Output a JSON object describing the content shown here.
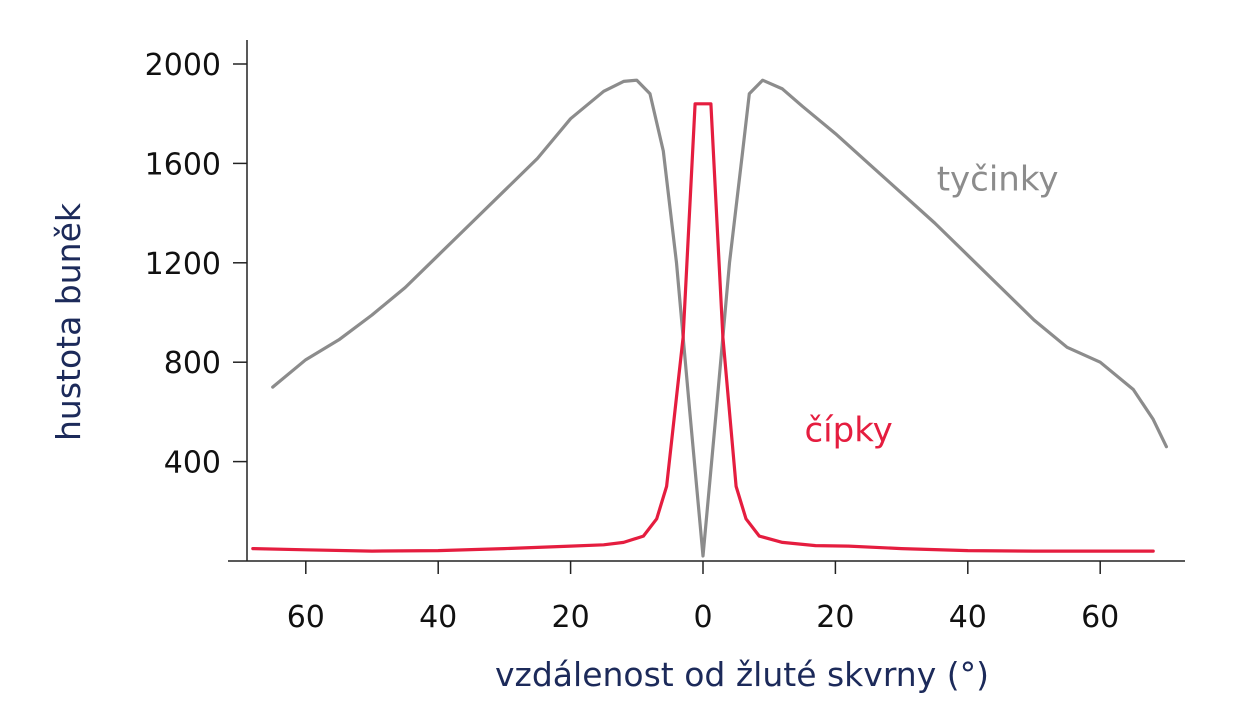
{
  "chart_data": {
    "type": "line",
    "xlabel": "vzdálenost od žluté skvrny (°)",
    "ylabel": "hustota buněk",
    "xlim": [
      -72,
      73
    ],
    "ylim": [
      0,
      2100
    ],
    "x_ticks": [
      -60,
      -40,
      -20,
      0,
      20,
      40,
      60
    ],
    "x_tick_labels": [
      "60",
      "40",
      "20",
      "0",
      "20",
      "40",
      "60"
    ],
    "y_ticks": [
      400,
      800,
      1200,
      1600,
      2000
    ],
    "y_tick_labels": [
      "400",
      "800",
      "1200",
      "1600",
      "2000"
    ],
    "grid": false,
    "legend": "none",
    "series": [
      {
        "name": "tyčinky",
        "color": "#8c8c8c",
        "label_x": 44.5,
        "label_y": 1490,
        "points": [
          [
            -65,
            700
          ],
          [
            -60,
            810
          ],
          [
            -55,
            890
          ],
          [
            -50,
            990
          ],
          [
            -45,
            1100
          ],
          [
            -40,
            1230
          ],
          [
            -35,
            1360
          ],
          [
            -30,
            1490
          ],
          [
            -25,
            1620
          ],
          [
            -20,
            1780
          ],
          [
            -15,
            1890
          ],
          [
            -12,
            1930
          ],
          [
            -10,
            1935
          ],
          [
            -8,
            1880
          ],
          [
            -6,
            1650
          ],
          [
            -4,
            1200
          ],
          [
            -2,
            600
          ],
          [
            0,
            20
          ],
          [
            2,
            600
          ],
          [
            4,
            1200
          ],
          [
            6,
            1650
          ],
          [
            7,
            1880
          ],
          [
            9,
            1935
          ],
          [
            12,
            1900
          ],
          [
            15,
            1830
          ],
          [
            20,
            1720
          ],
          [
            25,
            1600
          ],
          [
            30,
            1480
          ],
          [
            35,
            1360
          ],
          [
            40,
            1230
          ],
          [
            45,
            1100
          ],
          [
            50,
            970
          ],
          [
            55,
            860
          ],
          [
            60,
            800
          ],
          [
            65,
            690
          ],
          [
            68,
            570
          ],
          [
            70,
            460
          ]
        ]
      },
      {
        "name": "čípky",
        "color": "#e51d3f",
        "label_x": 22,
        "label_y": 480,
        "points": [
          [
            -68,
            50
          ],
          [
            -60,
            45
          ],
          [
            -50,
            40
          ],
          [
            -40,
            42
          ],
          [
            -30,
            50
          ],
          [
            -20,
            60
          ],
          [
            -15,
            65
          ],
          [
            -12,
            75
          ],
          [
            -9,
            100
          ],
          [
            -7,
            170
          ],
          [
            -5.5,
            300
          ],
          [
            -3,
            900
          ],
          [
            -1.2,
            1840
          ],
          [
            -0.4,
            1840
          ],
          [
            0.4,
            1840
          ],
          [
            1.2,
            1840
          ],
          [
            3,
            900
          ],
          [
            5,
            300
          ],
          [
            6.5,
            170
          ],
          [
            8.5,
            100
          ],
          [
            12,
            75
          ],
          [
            17,
            62
          ],
          [
            22,
            60
          ],
          [
            30,
            50
          ],
          [
            40,
            42
          ],
          [
            50,
            40
          ],
          [
            60,
            40
          ],
          [
            68,
            40
          ]
        ]
      }
    ]
  }
}
